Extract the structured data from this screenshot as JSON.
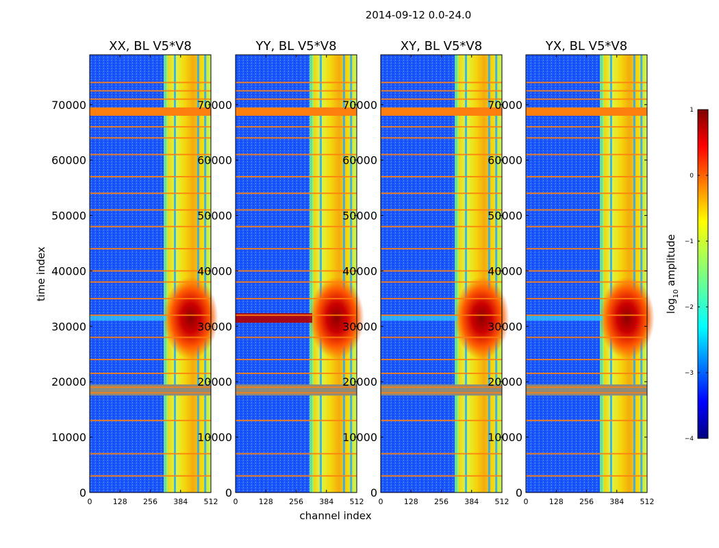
{
  "chart_data": {
    "type": "heatmap",
    "suptitle": "2014-09-12 0.0-24.0",
    "panels": [
      {
        "title": "XX, BL V5*V8"
      },
      {
        "title": "YY, BL V5*V8"
      },
      {
        "title": "XY, BL V5*V8"
      },
      {
        "title": "YX, BL V5*V8"
      }
    ],
    "x_axis": {
      "label": "channel index",
      "lim": [
        0,
        512
      ],
      "ticks": [
        0,
        128,
        256,
        384,
        512
      ]
    },
    "y_axis": {
      "label": "time index",
      "lim": [
        0,
        79000
      ],
      "ticks": [
        0,
        10000,
        20000,
        30000,
        40000,
        50000,
        60000,
        70000
      ]
    },
    "colorbar": {
      "label_main": "log",
      "label_sub": "10",
      "label_rest": " amplitude",
      "lim": [
        -4,
        1
      ],
      "ticks": [
        1,
        0,
        -1,
        -2,
        -3,
        -4
      ],
      "tick_labels": [
        "1",
        "0",
        "−1",
        "−2",
        "−3",
        "−4"
      ],
      "colormap": "jet"
    },
    "features": {
      "flagged_band_channels": [
        324,
        512
      ],
      "dividers_channels": [
        360,
        458,
        488
      ],
      "flag_lines_time": [
        3000,
        7000,
        13000,
        18000,
        19000,
        21500,
        24000,
        28000,
        32000,
        35000,
        38000,
        40000,
        44000,
        48000,
        51000,
        54000,
        57000,
        61000,
        64000,
        66000,
        71000,
        72500,
        74000
      ],
      "orange_band_time": [
        68000,
        69500
      ],
      "gray_band_time": [
        17500,
        19500
      ],
      "burst_center_time": 31500
    },
    "colors": {
      "background_field": "#1a4cff",
      "flag_orange": "#ff7f0e",
      "flag_gray": "#8c8c7a"
    }
  }
}
